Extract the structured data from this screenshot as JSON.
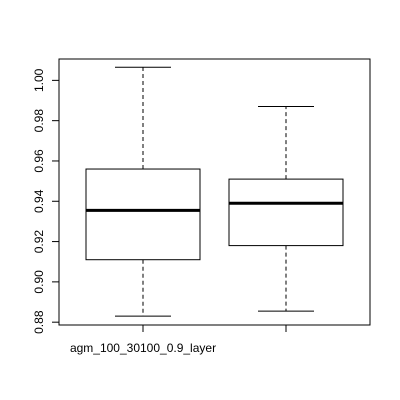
{
  "chart_data": {
    "type": "boxplot",
    "title": "",
    "xlabel": "",
    "ylabel": "",
    "ylim": [
      0.8786,
      1.0106
    ],
    "y_ticks": [
      0.88,
      0.9,
      0.92,
      0.94,
      0.96,
      0.98,
      1.0
    ],
    "y_tick_labels": [
      "0.88",
      "0.90",
      "0.92",
      "0.94",
      "0.96",
      "0.98",
      "1.00"
    ],
    "grid": false,
    "legend": "none",
    "boxes": [
      {
        "label": "agm_100_30100_0.9_layer",
        "min": 0.883,
        "q1": 0.911,
        "median": 0.9355,
        "q3": 0.956,
        "max": 1.0065
      },
      {
        "label": "",
        "min": 0.8855,
        "q1": 0.918,
        "median": 0.939,
        "q3": 0.951,
        "max": 0.987
      }
    ]
  }
}
